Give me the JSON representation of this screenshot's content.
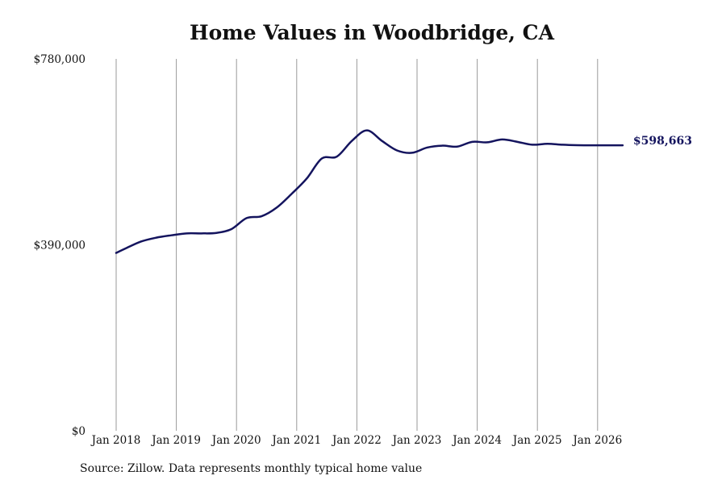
{
  "chart_data": {
    "type": "line",
    "title": "Home Values in Woodbridge, CA",
    "xlabel": "",
    "ylabel": "",
    "ylim": [
      0,
      780000
    ],
    "y_ticks": [
      0,
      390000,
      780000
    ],
    "y_tick_labels": [
      "$0",
      "$390,000",
      "$780,000"
    ],
    "x_ticks": [
      "Jan 2018",
      "Jan 2019",
      "Jan 2020",
      "Jan 2021",
      "Jan 2022",
      "Jan 2023",
      "Jan 2024",
      "Jan 2025",
      "Jan 2026"
    ],
    "grid": "vertical",
    "series": [
      {
        "color": "#14145e",
        "x": [
          "2018-01",
          "2018-03",
          "2018-06",
          "2018-09",
          "2018-12",
          "2019-03",
          "2019-06",
          "2019-09",
          "2019-12",
          "2020-03",
          "2020-06",
          "2020-09",
          "2020-12",
          "2021-03",
          "2021-06",
          "2021-09",
          "2021-12",
          "2022-03",
          "2022-06",
          "2022-09",
          "2022-12",
          "2023-03",
          "2023-06",
          "2023-09",
          "2023-12",
          "2024-03",
          "2024-06",
          "2024-09",
          "2024-12",
          "2025-03",
          "2025-06",
          "2025-09",
          "2025-12",
          "2026-03",
          "2026-06"
        ],
        "values": [
          373000,
          383000,
          397000,
          405000,
          410000,
          414000,
          414000,
          415000,
          423000,
          446000,
          450000,
          468000,
          497000,
          529000,
          571000,
          575000,
          608000,
          630000,
          608000,
          588000,
          583000,
          594000,
          598000,
          596000,
          606000,
          605000,
          611000,
          606000,
          600000,
          602000,
          600000,
          599000,
          598663,
          598663,
          598663
        ]
      }
    ],
    "end_label": "$598,663"
  },
  "footer": {
    "source": "Source: Zillow. Data represents monthly typical home value"
  }
}
